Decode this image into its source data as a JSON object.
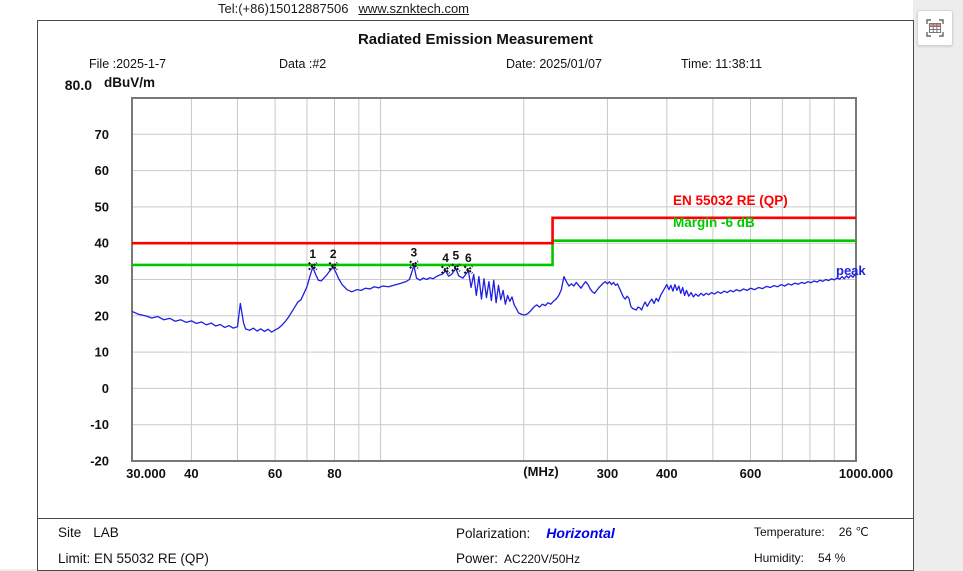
{
  "page": {
    "tel": "Tel:(+86)15012887506",
    "website": "www.sznktech.com"
  },
  "header": {
    "title": "Radiated Emission Measurement",
    "file": "File :2025-1-7",
    "data": "Data :#2",
    "date": "Date: 2025/01/07",
    "time": "Time: 11:38:11"
  },
  "chart_data": {
    "type": "line",
    "title": "Radiated Emission Measurement",
    "x_axis": {
      "label": "(MHz)",
      "scale": "log",
      "min": 30,
      "max": 1000,
      "ticks": [
        {
          "f": 30,
          "label": "30.000"
        },
        {
          "f": 40,
          "label": "40"
        },
        {
          "f": 60,
          "label": "60"
        },
        {
          "f": 80,
          "label": "80"
        },
        {
          "f": 300,
          "label": "300"
        },
        {
          "f": 400,
          "label": "400"
        },
        {
          "f": 600,
          "label": "600"
        },
        {
          "f": 1000,
          "label": "1000.000"
        }
      ],
      "grid": [
        40,
        50,
        60,
        70,
        80,
        90,
        100,
        200,
        300,
        400,
        500,
        600,
        700,
        800,
        900
      ]
    },
    "y_axis": {
      "label": "dBuV/m",
      "top_label": "80.0",
      "min": -20,
      "max": 80,
      "ticks": [
        {
          "v": 70,
          "label": "70"
        },
        {
          "v": 60,
          "label": "60"
        },
        {
          "v": 50,
          "label": "50"
        },
        {
          "v": 40,
          "label": "40"
        },
        {
          "v": 30,
          "label": "30"
        },
        {
          "v": 20,
          "label": "20"
        },
        {
          "v": 10,
          "label": "10"
        },
        {
          "v": 0,
          "label": "0"
        },
        {
          "v": -10,
          "label": "-10"
        },
        {
          "v": -20,
          "label": "-20"
        }
      ]
    },
    "grid_color": "#c9c9c9",
    "frame_color": "#787878",
    "limits": [
      {
        "name": "EN 55032 RE (QP)",
        "color": "#ff0000",
        "points": [
          [
            30,
            40
          ],
          [
            230,
            40
          ],
          [
            230,
            47
          ],
          [
            1000,
            47
          ]
        ]
      },
      {
        "name": "Margin -6 dB",
        "color": "#00c800",
        "points": [
          [
            30,
            34
          ],
          [
            230,
            34
          ],
          [
            230,
            40.7
          ],
          [
            1000,
            40.7
          ]
        ]
      }
    ],
    "markers": [
      {
        "n": "1",
        "f": 72,
        "v": 33.4
      },
      {
        "n": "2",
        "f": 79.5,
        "v": 33.4
      },
      {
        "n": "3",
        "f": 117.5,
        "v": 33.8
      },
      {
        "n": "4",
        "f": 137,
        "v": 32.4
      },
      {
        "n": "5",
        "f": 144,
        "v": 33.0
      },
      {
        "n": "6",
        "f": 153,
        "v": 32.4
      }
    ],
    "trace": {
      "name": "peak",
      "color": "#1f1fe0",
      "points": [
        [
          30,
          21.2
        ],
        [
          31,
          20.4
        ],
        [
          32,
          20.0
        ],
        [
          33,
          19.4
        ],
        [
          34,
          19.8
        ],
        [
          35,
          18.9
        ],
        [
          36,
          19.3
        ],
        [
          37,
          18.5
        ],
        [
          38,
          18.9
        ],
        [
          39,
          18.2
        ],
        [
          40,
          18.6
        ],
        [
          41,
          17.9
        ],
        [
          42,
          18.3
        ],
        [
          43,
          17.5
        ],
        [
          44,
          18.0
        ],
        [
          45,
          17.2
        ],
        [
          46,
          17.6
        ],
        [
          47,
          16.8
        ],
        [
          48,
          17.3
        ],
        [
          49,
          16.6
        ],
        [
          50,
          17.0
        ],
        [
          50.7,
          23.4
        ],
        [
          51.5,
          18.0
        ],
        [
          52,
          16.4
        ],
        [
          53,
          16.0
        ],
        [
          54,
          16.6
        ],
        [
          55,
          15.8
        ],
        [
          56,
          16.4
        ],
        [
          57,
          15.7
        ],
        [
          58,
          16.3
        ],
        [
          59,
          15.5
        ],
        [
          60,
          16.1
        ],
        [
          61,
          16.6
        ],
        [
          62,
          17.4
        ],
        [
          63,
          18.4
        ],
        [
          64,
          19.6
        ],
        [
          65,
          21.0
        ],
        [
          66,
          22.4
        ],
        [
          67,
          23.8
        ],
        [
          68,
          24.4
        ],
        [
          69,
          26.2
        ],
        [
          70,
          28.0
        ],
        [
          71,
          30.8
        ],
        [
          72,
          33.4
        ],
        [
          73,
          31.4
        ],
        [
          74,
          29.8
        ],
        [
          75,
          29.6
        ],
        [
          76,
          30.4
        ],
        [
          77,
          31.2
        ],
        [
          78,
          32.2
        ],
        [
          79.5,
          33.4
        ],
        [
          80.5,
          32.0
        ],
        [
          81.5,
          30.4
        ],
        [
          83,
          28.6
        ],
        [
          85,
          27.2
        ],
        [
          87,
          26.6
        ],
        [
          89,
          27.2
        ],
        [
          91,
          27.0
        ],
        [
          93,
          27.6
        ],
        [
          95,
          27.4
        ],
        [
          97,
          28.0
        ],
        [
          99,
          27.7
        ],
        [
          101,
          28.2
        ],
        [
          104,
          28.0
        ],
        [
          107,
          28.5
        ],
        [
          110,
          28.9
        ],
        [
          113,
          29.4
        ],
        [
          115,
          30.0
        ],
        [
          117.5,
          33.8
        ],
        [
          119,
          30.4
        ],
        [
          121,
          29.8
        ],
        [
          123,
          30.4
        ],
        [
          125,
          30.0
        ],
        [
          127,
          30.5
        ],
        [
          129,
          30.2
        ],
        [
          131,
          30.8
        ],
        [
          133,
          31.2
        ],
        [
          135,
          31.5
        ],
        [
          137,
          32.4
        ],
        [
          139,
          30.9
        ],
        [
          141,
          31.4
        ],
        [
          144,
          33.0
        ],
        [
          146,
          31.0
        ],
        [
          149,
          30.4
        ],
        [
          151,
          31.4
        ],
        [
          153,
          32.4
        ],
        [
          155,
          27.8
        ],
        [
          157,
          31.4
        ],
        [
          159,
          25.6
        ],
        [
          161,
          30.8
        ],
        [
          163,
          24.6
        ],
        [
          165,
          30.2
        ],
        [
          167,
          25.0
        ],
        [
          169,
          29.4
        ],
        [
          171,
          24.2
        ],
        [
          173,
          29.8
        ],
        [
          175,
          23.6
        ],
        [
          177,
          28.4
        ],
        [
          179,
          24.4
        ],
        [
          181,
          27.0
        ],
        [
          183,
          23.2
        ],
        [
          185,
          25.6
        ],
        [
          187,
          24.0
        ],
        [
          189,
          25.2
        ],
        [
          191,
          23.0
        ],
        [
          193,
          22.0
        ],
        [
          195,
          20.8
        ],
        [
          198,
          20.4
        ],
        [
          201,
          20.2
        ],
        [
          204,
          20.6
        ],
        [
          207,
          21.4
        ],
        [
          210,
          22.4
        ],
        [
          213,
          23.0
        ],
        [
          216,
          22.4
        ],
        [
          219,
          23.2
        ],
        [
          222,
          22.8
        ],
        [
          225,
          23.6
        ],
        [
          228,
          23.2
        ],
        [
          231,
          24.0
        ],
        [
          234,
          24.6
        ],
        [
          237,
          25.6
        ],
        [
          240,
          27.2
        ],
        [
          243,
          30.8
        ],
        [
          246,
          29.4
        ],
        [
          249,
          28.2
        ],
        [
          252,
          28.8
        ],
        [
          255,
          28.2
        ],
        [
          258,
          29.2
        ],
        [
          261,
          28.4
        ],
        [
          264,
          27.6
        ],
        [
          267,
          28.6
        ],
        [
          270,
          29.4
        ],
        [
          273,
          28.6
        ],
        [
          276,
          27.4
        ],
        [
          279,
          26.6
        ],
        [
          282,
          26.2
        ],
        [
          285,
          27.0
        ],
        [
          288,
          27.8
        ],
        [
          291,
          28.4
        ],
        [
          294,
          29.0
        ],
        [
          297,
          29.4
        ],
        [
          300,
          28.8
        ],
        [
          303,
          29.4
        ],
        [
          306,
          28.6
        ],
        [
          309,
          29.2
        ],
        [
          312,
          28.4
        ],
        [
          315,
          28.8
        ],
        [
          318,
          27.6
        ],
        [
          321,
          26.4
        ],
        [
          324,
          25.2
        ],
        [
          327,
          24.6
        ],
        [
          330,
          25.4
        ],
        [
          333,
          24.8
        ],
        [
          336,
          22.6
        ],
        [
          339,
          22.0
        ],
        [
          342,
          21.8
        ],
        [
          345,
          21.6
        ],
        [
          348,
          22.4
        ],
        [
          351,
          22.2
        ],
        [
          354,
          21.6
        ],
        [
          357,
          22.8
        ],
        [
          360,
          23.8
        ],
        [
          364,
          22.6
        ],
        [
          368,
          23.8
        ],
        [
          372,
          24.6
        ],
        [
          376,
          23.4
        ],
        [
          380,
          24.8
        ],
        [
          384,
          24.0
        ],
        [
          388,
          25.6
        ],
        [
          392,
          26.6
        ],
        [
          396,
          27.6
        ],
        [
          400,
          28.6
        ],
        [
          404,
          27.2
        ],
        [
          408,
          28.4
        ],
        [
          412,
          26.8
        ],
        [
          416,
          28.6
        ],
        [
          420,
          27.0
        ],
        [
          424,
          28.2
        ],
        [
          428,
          26.2
        ],
        [
          432,
          27.8
        ],
        [
          436,
          25.6
        ],
        [
          440,
          27.0
        ],
        [
          445,
          25.4
        ],
        [
          450,
          26.4
        ],
        [
          455,
          25.2
        ],
        [
          460,
          26.0
        ],
        [
          466,
          25.4
        ],
        [
          472,
          26.2
        ],
        [
          478,
          25.6
        ],
        [
          484,
          26.2
        ],
        [
          490,
          25.8
        ],
        [
          497,
          26.4
        ],
        [
          504,
          26.0
        ],
        [
          512,
          26.6
        ],
        [
          520,
          26.2
        ],
        [
          528,
          26.8
        ],
        [
          536,
          26.4
        ],
        [
          544,
          27.0
        ],
        [
          552,
          26.6
        ],
        [
          560,
          27.2
        ],
        [
          570,
          26.8
        ],
        [
          580,
          27.4
        ],
        [
          590,
          27.0
        ],
        [
          600,
          27.6
        ],
        [
          612,
          27.2
        ],
        [
          624,
          27.8
        ],
        [
          636,
          27.5
        ],
        [
          648,
          28.1
        ],
        [
          660,
          27.8
        ],
        [
          672,
          28.3
        ],
        [
          684,
          28.0
        ],
        [
          696,
          28.6
        ],
        [
          708,
          28.2
        ],
        [
          720,
          28.8
        ],
        [
          732,
          28.5
        ],
        [
          744,
          29.0
        ],
        [
          756,
          28.7
        ],
        [
          768,
          29.2
        ],
        [
          780,
          28.9
        ],
        [
          792,
          29.4
        ],
        [
          804,
          29.1
        ],
        [
          816,
          29.6
        ],
        [
          828,
          29.3
        ],
        [
          840,
          29.8
        ],
        [
          852,
          29.5
        ],
        [
          864,
          30.0
        ],
        [
          876,
          29.7
        ],
        [
          888,
          30.2
        ],
        [
          900,
          29.9
        ],
        [
          912,
          30.4
        ],
        [
          924,
          30.1
        ],
        [
          935,
          30.8
        ],
        [
          945,
          30.2
        ],
        [
          955,
          31.0
        ],
        [
          965,
          30.4
        ],
        [
          975,
          31.2
        ],
        [
          985,
          30.6
        ],
        [
          995,
          31.4
        ],
        [
          1000,
          30.9
        ]
      ]
    }
  },
  "footer": {
    "site_label": "Site",
    "site_value": "LAB",
    "limit_label": "Limit:",
    "limit_value": "EN 55032 RE (QP)",
    "polarization_label": "Polarization:",
    "polarization_value": "Horizontal",
    "power_label": "Power:",
    "power_value": "AC220V/50Hz",
    "temperature_label": "Temperature:",
    "temperature_value": "26 ℃",
    "humidity_label": "Humidity:",
    "humidity_value": "54 %"
  }
}
